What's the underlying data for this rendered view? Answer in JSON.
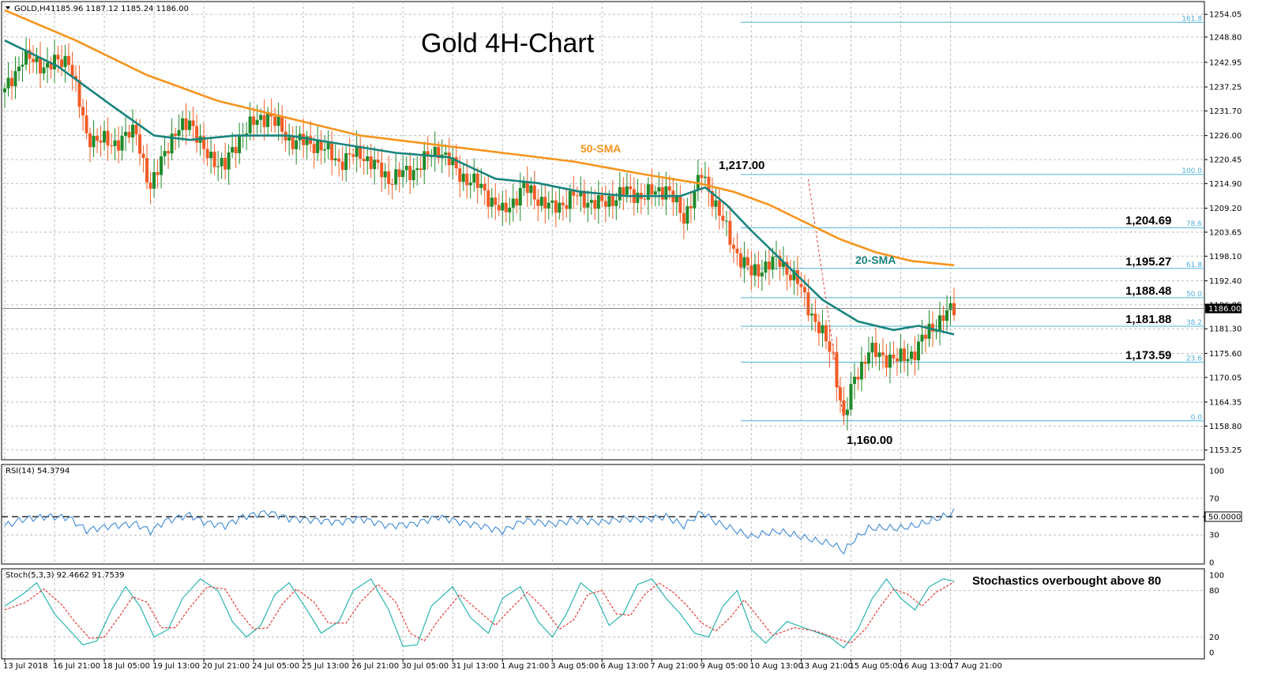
{
  "chart_data": {
    "type": "candlestick",
    "title": "Gold 4H-Chart",
    "header": {
      "symbol": "GOLD,H4",
      "ohlc": "1185.96 1187.12 1185.24 1186.00"
    },
    "current_price_label": "1186.00",
    "y_axis": {
      "range": [
        1151,
        1257
      ],
      "ticks": [
        "1254.05",
        "1248.80",
        "1242.95",
        "1237.25",
        "1231.70",
        "1226.00",
        "1220.45",
        "1214.90",
        "1209.20",
        "1203.65",
        "1198.10",
        "1192.40",
        "1186.85",
        "1181.30",
        "1175.60",
        "1170.05",
        "1164.35",
        "1158.80",
        "1153.25"
      ]
    },
    "x_axis": {
      "ticks": [
        "13 Jul 2018",
        "16 Jul 21:00",
        "18 Jul 05:00",
        "19 Jul 13:00",
        "20 Jul 21:00",
        "24 Jul 05:00",
        "25 Jul 13:00",
        "26 Jul 21:00",
        "30 Jul 05:00",
        "31 Jul 13:00",
        "1 Aug 21:00",
        "3 Aug 05:00",
        "6 Aug 13:00",
        "7 Aug 21:00",
        "9 Aug 05:00",
        "10 Aug 13:00",
        "13 Aug 21:00",
        "15 Aug 05:00",
        "16 Aug 13:00",
        "17 Aug 21:00"
      ]
    },
    "key_path": [
      [
        0,
        1236
      ],
      [
        5,
        1244
      ],
      [
        12,
        1242
      ],
      [
        18,
        1244
      ],
      [
        23,
        1226
      ],
      [
        30,
        1224
      ],
      [
        37,
        1227
      ],
      [
        41,
        1213
      ],
      [
        45,
        1223
      ],
      [
        52,
        1230
      ],
      [
        56,
        1222
      ],
      [
        62,
        1219
      ],
      [
        67,
        1227
      ],
      [
        74,
        1231
      ],
      [
        80,
        1225
      ],
      [
        88,
        1224
      ],
      [
        94,
        1220
      ],
      [
        100,
        1222
      ],
      [
        108,
        1216
      ],
      [
        115,
        1218
      ],
      [
        122,
        1223
      ],
      [
        128,
        1217
      ],
      [
        134,
        1214
      ],
      [
        140,
        1208
      ],
      [
        146,
        1214
      ],
      [
        154,
        1209
      ],
      [
        160,
        1212
      ],
      [
        168,
        1210
      ],
      [
        174,
        1213
      ],
      [
        180,
        1212
      ],
      [
        186,
        1214
      ],
      [
        191,
        1207
      ],
      [
        196,
        1217
      ],
      [
        200,
        1210
      ],
      [
        205,
        1200
      ],
      [
        210,
        1194
      ],
      [
        214,
        1196
      ],
      [
        218,
        1197
      ],
      [
        223,
        1192
      ],
      [
        228,
        1183
      ],
      [
        233,
        1175
      ],
      [
        236,
        1160
      ],
      [
        239,
        1170
      ],
      [
        243,
        1176
      ],
      [
        247,
        1175
      ],
      [
        251,
        1174
      ],
      [
        256,
        1176
      ],
      [
        260,
        1181
      ],
      [
        264,
        1184
      ],
      [
        267,
        1186
      ]
    ],
    "sma20_path": [
      [
        0,
        1248
      ],
      [
        15,
        1242
      ],
      [
        30,
        1233
      ],
      [
        42,
        1226
      ],
      [
        52,
        1225
      ],
      [
        65,
        1226
      ],
      [
        80,
        1226
      ],
      [
        95,
        1224
      ],
      [
        110,
        1222
      ],
      [
        125,
        1221
      ],
      [
        138,
        1216
      ],
      [
        150,
        1215
      ],
      [
        162,
        1213
      ],
      [
        175,
        1212
      ],
      [
        190,
        1212
      ],
      [
        197,
        1214
      ],
      [
        203,
        1210
      ],
      [
        210,
        1204
      ],
      [
        220,
        1196
      ],
      [
        230,
        1188
      ],
      [
        240,
        1183
      ],
      [
        250,
        1181
      ],
      [
        257,
        1182
      ],
      [
        267,
        1180
      ]
    ],
    "sma50_path": [
      [
        0,
        1255
      ],
      [
        20,
        1248
      ],
      [
        40,
        1240
      ],
      [
        60,
        1234
      ],
      [
        80,
        1230
      ],
      [
        100,
        1226
      ],
      [
        120,
        1224
      ],
      [
        140,
        1222
      ],
      [
        160,
        1220
      ],
      [
        180,
        1217
      ],
      [
        195,
        1215
      ],
      [
        205,
        1213
      ],
      [
        215,
        1210
      ],
      [
        225,
        1206
      ],
      [
        235,
        1202
      ],
      [
        245,
        1199
      ],
      [
        255,
        1197
      ],
      [
        267,
        1196
      ]
    ],
    "sma_labels": {
      "sma50": "50-SMA",
      "sma20": "20-SMA"
    },
    "annotations": [
      {
        "text": "1,217.00",
        "price": 1217.0
      },
      {
        "text": "1,204.69",
        "price": 1204.69
      },
      {
        "text": "1,195.27",
        "price": 1195.27
      },
      {
        "text": "1,188.48",
        "price": 1188.48
      },
      {
        "text": "1,181.88",
        "price": 1181.88
      },
      {
        "text": "1,173.59",
        "price": 1173.59
      },
      {
        "text": "1,160.00",
        "price": 1160.0
      }
    ],
    "fibonacci": [
      {
        "label": "161.8",
        "price": 1252.2
      },
      {
        "label": "100.0",
        "price": 1217.0
      },
      {
        "label": "78.6",
        "price": 1204.69
      },
      {
        "label": "61.8",
        "price": 1195.27
      },
      {
        "label": "50.0",
        "price": 1188.48
      },
      {
        "label": "38.2",
        "price": 1181.88
      },
      {
        "label": "23.6",
        "price": 1173.59
      },
      {
        "label": "0.0",
        "price": 1160.0
      }
    ],
    "rsi": {
      "header": "RSI(14) 54.3794",
      "current_label": "50.0000",
      "ticks": [
        "100",
        "70",
        "30",
        "0"
      ],
      "midline": 50,
      "path": [
        [
          0,
          40
        ],
        [
          5,
          47
        ],
        [
          12,
          50
        ],
        [
          18,
          49
        ],
        [
          23,
          35
        ],
        [
          30,
          40
        ],
        [
          37,
          42
        ],
        [
          41,
          34
        ],
        [
          45,
          45
        ],
        [
          52,
          52
        ],
        [
          56,
          44
        ],
        [
          62,
          40
        ],
        [
          67,
          50
        ],
        [
          74,
          55
        ],
        [
          80,
          48
        ],
        [
          88,
          46
        ],
        [
          94,
          44
        ],
        [
          100,
          48
        ],
        [
          108,
          40
        ],
        [
          115,
          42
        ],
        [
          122,
          50
        ],
        [
          128,
          44
        ],
        [
          134,
          40
        ],
        [
          140,
          34
        ],
        [
          146,
          46
        ],
        [
          154,
          42
        ],
        [
          160,
          46
        ],
        [
          168,
          44
        ],
        [
          174,
          48
        ],
        [
          180,
          47
        ],
        [
          186,
          50
        ],
        [
          191,
          40
        ],
        [
          196,
          55
        ],
        [
          200,
          44
        ],
        [
          205,
          36
        ],
        [
          210,
          28
        ],
        [
          214,
          32
        ],
        [
          218,
          34
        ],
        [
          223,
          29
        ],
        [
          228,
          24
        ],
        [
          233,
          20
        ],
        [
          236,
          12
        ],
        [
          239,
          25
        ],
        [
          243,
          37
        ],
        [
          247,
          38
        ],
        [
          251,
          37
        ],
        [
          256,
          40
        ],
        [
          260,
          45
        ],
        [
          264,
          50
        ],
        [
          267,
          55
        ]
      ]
    },
    "stoch": {
      "header": "Stoch(5,3,3) 92.4662 91.7539",
      "annotation": "Stochastics overbought above 80",
      "ticks": [
        "100",
        "80",
        "20",
        "0"
      ],
      "k_path": [
        [
          0,
          60
        ],
        [
          5,
          75
        ],
        [
          9,
          90
        ],
        [
          14,
          50
        ],
        [
          18,
          30
        ],
        [
          22,
          10
        ],
        [
          26,
          15
        ],
        [
          30,
          55
        ],
        [
          34,
          85
        ],
        [
          38,
          60
        ],
        [
          42,
          20
        ],
        [
          46,
          30
        ],
        [
          50,
          70
        ],
        [
          55,
          95
        ],
        [
          60,
          80
        ],
        [
          64,
          40
        ],
        [
          68,
          20
        ],
        [
          72,
          35
        ],
        [
          76,
          75
        ],
        [
          80,
          90
        ],
        [
          85,
          55
        ],
        [
          89,
          25
        ],
        [
          94,
          40
        ],
        [
          98,
          80
        ],
        [
          103,
          95
        ],
        [
          108,
          55
        ],
        [
          112,
          8
        ],
        [
          116,
          10
        ],
        [
          120,
          60
        ],
        [
          126,
          85
        ],
        [
          131,
          45
        ],
        [
          136,
          25
        ],
        [
          140,
          70
        ],
        [
          145,
          85
        ],
        [
          150,
          40
        ],
        [
          154,
          20
        ],
        [
          158,
          50
        ],
        [
          162,
          90
        ],
        [
          166,
          75
        ],
        [
          170,
          35
        ],
        [
          174,
          50
        ],
        [
          178,
          88
        ],
        [
          182,
          95
        ],
        [
          186,
          70
        ],
        [
          190,
          50
        ],
        [
          194,
          25
        ],
        [
          198,
          20
        ],
        [
          202,
          60
        ],
        [
          206,
          80
        ],
        [
          210,
          30
        ],
        [
          214,
          12
        ],
        [
          220,
          40
        ],
        [
          226,
          30
        ],
        [
          232,
          20
        ],
        [
          236,
          6
        ],
        [
          240,
          30
        ],
        [
          244,
          70
        ],
        [
          248,
          95
        ],
        [
          252,
          70
        ],
        [
          256,
          55
        ],
        [
          260,
          85
        ],
        [
          264,
          95
        ],
        [
          267,
          92
        ]
      ],
      "d_path": [
        [
          0,
          55
        ],
        [
          6,
          65
        ],
        [
          11,
          82
        ],
        [
          16,
          62
        ],
        [
          20,
          38
        ],
        [
          24,
          18
        ],
        [
          28,
          20
        ],
        [
          32,
          45
        ],
        [
          36,
          72
        ],
        [
          40,
          65
        ],
        [
          44,
          32
        ],
        [
          48,
          32
        ],
        [
          52,
          58
        ],
        [
          57,
          85
        ],
        [
          62,
          82
        ],
        [
          66,
          52
        ],
        [
          70,
          30
        ],
        [
          74,
          32
        ],
        [
          78,
          62
        ],
        [
          82,
          82
        ],
        [
          87,
          65
        ],
        [
          91,
          38
        ],
        [
          96,
          38
        ],
        [
          100,
          65
        ],
        [
          105,
          88
        ],
        [
          110,
          65
        ],
        [
          114,
          25
        ],
        [
          118,
          15
        ],
        [
          122,
          42
        ],
        [
          128,
          75
        ],
        [
          133,
          55
        ],
        [
          138,
          35
        ],
        [
          142,
          55
        ],
        [
          147,
          78
        ],
        [
          152,
          55
        ],
        [
          156,
          30
        ],
        [
          160,
          42
        ],
        [
          164,
          75
        ],
        [
          168,
          80
        ],
        [
          172,
          50
        ],
        [
          176,
          48
        ],
        [
          180,
          75
        ],
        [
          184,
          90
        ],
        [
          188,
          78
        ],
        [
          192,
          60
        ],
        [
          196,
          38
        ],
        [
          200,
          28
        ],
        [
          204,
          45
        ],
        [
          208,
          68
        ],
        [
          212,
          45
        ],
        [
          216,
          22
        ],
        [
          222,
          32
        ],
        [
          228,
          28
        ],
        [
          234,
          18
        ],
        [
          238,
          12
        ],
        [
          242,
          30
        ],
        [
          246,
          58
        ],
        [
          250,
          82
        ],
        [
          254,
          75
        ],
        [
          258,
          60
        ],
        [
          262,
          78
        ],
        [
          267,
          91
        ]
      ]
    },
    "candles": {
      "count": 268
    }
  }
}
